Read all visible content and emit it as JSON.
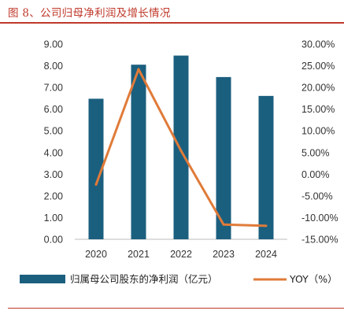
{
  "header": {
    "title": "图 8、公司归母净利润及增长情况"
  },
  "colors": {
    "title": "#c0392b",
    "bar": "#1b5f7f",
    "line": "#e07b39"
  },
  "chart_data": {
    "type": "bar",
    "categories": [
      "2020",
      "2021",
      "2022",
      "2023",
      "2024"
    ],
    "series": [
      {
        "name": "归属母公司股东的净利润（亿元）",
        "type": "bar",
        "axis": "left",
        "values": [
          6.48,
          8.05,
          8.47,
          7.48,
          6.61
        ]
      },
      {
        "name": "YOY（%）",
        "type": "line",
        "axis": "right",
        "values": [
          -2.4,
          24.2,
          5.4,
          -11.6,
          -11.9
        ]
      }
    ],
    "y_left": {
      "ylim": [
        0,
        9
      ],
      "ticks": [
        "0.00",
        "1.00",
        "2.00",
        "3.00",
        "4.00",
        "5.00",
        "6.00",
        "7.00",
        "8.00",
        "9.00"
      ]
    },
    "y_right": {
      "ylim": [
        -15,
        30
      ],
      "ticks": [
        "-15.00%",
        "-10.00%",
        "-5.00%",
        "0.00%",
        "5.00%",
        "10.00%",
        "15.00%",
        "20.00%",
        "25.00%",
        "30.00%"
      ]
    },
    "legend_position": "bottom",
    "grid": false
  }
}
